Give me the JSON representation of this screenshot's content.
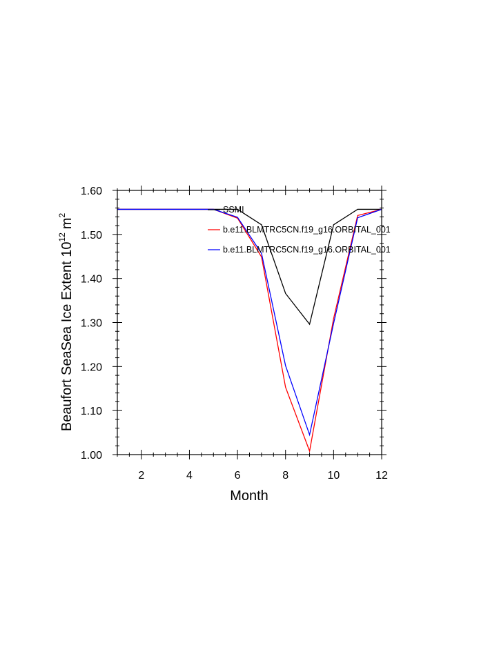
{
  "chart_data": {
    "type": "line",
    "title": "",
    "xlabel": "Month",
    "ylabel": "Beaufort SeaSea Ice Extent 10",
    "ylabel_exp": "12",
    "ylabel_unit": "m",
    "ylabel_unit_exp": "2",
    "xlim": [
      1,
      12
    ],
    "ylim": [
      1.0,
      1.6
    ],
    "xticks": [
      2,
      4,
      6,
      8,
      10,
      12
    ],
    "xtick_labels": [
      "2",
      "4",
      "6",
      "8",
      "10",
      "12"
    ],
    "yticks": [
      1.0,
      1.1,
      1.2,
      1.3,
      1.4,
      1.5,
      1.6
    ],
    "ytick_labels": [
      "1.00",
      "1.10",
      "1.20",
      "1.30",
      "1.40",
      "1.50",
      "1.60"
    ],
    "grid": false,
    "legend_position": "top-right, inside plot",
    "x": [
      1,
      2,
      3,
      4,
      5,
      6,
      7,
      8,
      9,
      10,
      11,
      12
    ],
    "series": [
      {
        "name": "SSMI",
        "color": "#000000",
        "values": [
          1.557,
          1.557,
          1.557,
          1.557,
          1.557,
          1.557,
          1.522,
          1.366,
          1.296,
          1.522,
          1.557,
          1.557
        ]
      },
      {
        "name": "b.e11.BLMTRC5CN.f19_g16.ORBITAL_001",
        "color": "#ff0000",
        "values": [
          1.557,
          1.557,
          1.557,
          1.557,
          1.557,
          1.537,
          1.449,
          1.153,
          1.008,
          1.309,
          1.543,
          1.557
        ]
      },
      {
        "name": "b.e11.BLMTRC5CN.f19_g16.ORBITAL_001",
        "color": "#0000ff",
        "values": [
          1.557,
          1.557,
          1.557,
          1.557,
          1.557,
          1.539,
          1.457,
          1.202,
          1.045,
          1.298,
          1.538,
          1.557
        ]
      }
    ]
  }
}
